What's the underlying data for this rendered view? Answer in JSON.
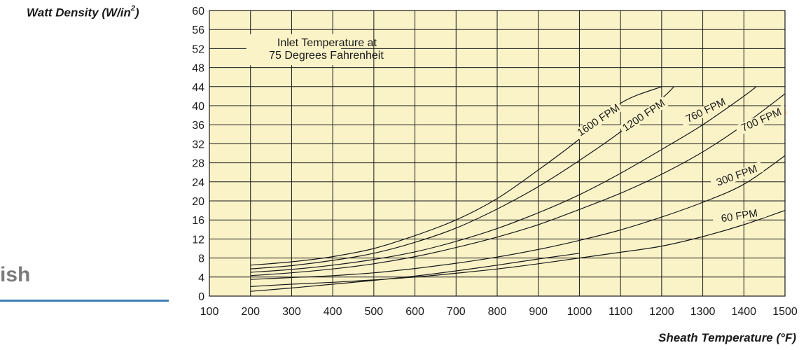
{
  "page": {
    "ylabel_main": "Watt Density (W/in",
    "ylabel_sup": "2",
    "ylabel_close": ")",
    "side_text": "ish"
  },
  "chart_data": {
    "type": "line",
    "title": "",
    "xlabel": "Sheath Temperature (°F)",
    "ylabel": "Watt Density (W/in2)",
    "xlim": [
      100,
      1500
    ],
    "ylim": [
      0,
      60
    ],
    "xticks": [
      100,
      200,
      300,
      400,
      500,
      600,
      700,
      800,
      900,
      1000,
      1100,
      1200,
      1300,
      1400,
      1500
    ],
    "yticks": [
      0,
      4,
      8,
      12,
      16,
      20,
      24,
      28,
      32,
      36,
      40,
      44,
      48,
      52,
      56,
      60
    ],
    "grid": true,
    "background": "#faf3c8",
    "annotation": [
      "Inlet Temperature at",
      "75 Degrees Fahrenheit"
    ],
    "series": [
      {
        "name": "1600 FPM",
        "x": [
          200,
          300,
          400,
          500,
          600,
          700,
          800,
          900,
          1000,
          1100,
          1200
        ],
        "y": [
          6.5,
          7.2,
          8.3,
          10.0,
          12.7,
          16.0,
          20.5,
          26.5,
          33.0,
          40.5,
          44.0
        ]
      },
      {
        "name": "1200 FPM",
        "x": [
          200,
          300,
          400,
          500,
          600,
          700,
          800,
          900,
          1000,
          1100,
          1200,
          1230
        ],
        "y": [
          5.7,
          6.4,
          7.5,
          9.0,
          11.3,
          14.3,
          18.3,
          23.0,
          28.5,
          34.5,
          41.5,
          44.0
        ]
      },
      {
        "name": "760 FPM",
        "x": [
          200,
          300,
          400,
          500,
          600,
          700,
          800,
          900,
          1000,
          1100,
          1200,
          1300,
          1400,
          1430
        ],
        "y": [
          5.0,
          5.6,
          6.5,
          7.7,
          9.3,
          11.5,
          14.2,
          17.5,
          21.3,
          25.8,
          30.8,
          36.0,
          42.0,
          44.0
        ]
      },
      {
        "name": "700 FPM",
        "x": [
          200,
          300,
          400,
          500,
          600,
          700,
          800,
          900,
          1000,
          1100,
          1200,
          1300,
          1400,
          1500
        ],
        "y": [
          4.3,
          4.9,
          5.7,
          6.8,
          8.3,
          10.2,
          12.4,
          15.0,
          18.2,
          21.6,
          25.6,
          30.3,
          36.0,
          42.5
        ]
      },
      {
        "name": "300 FPM",
        "x": [
          200,
          300,
          400,
          500,
          600,
          700,
          800,
          900,
          1000,
          1100,
          1200,
          1300,
          1400,
          1500
        ],
        "y": [
          3.5,
          3.9,
          4.3,
          4.9,
          5.8,
          6.9,
          8.2,
          9.8,
          11.7,
          13.9,
          16.6,
          19.7,
          23.5,
          29.5
        ]
      },
      {
        "name": "60 FPM",
        "x": [
          200,
          300,
          400,
          500,
          600,
          700,
          800,
          900,
          1000,
          1100,
          1200,
          1300,
          1400,
          1500
        ],
        "y": [
          2.0,
          2.5,
          2.9,
          3.4,
          4.0,
          4.8,
          5.7,
          6.8,
          8.0,
          9.2,
          10.5,
          12.5,
          15.0,
          18.0
        ]
      },
      {
        "name": "",
        "x": [
          200,
          300,
          400,
          500,
          600,
          700,
          800,
          900,
          1000
        ],
        "y": [
          1.0,
          1.7,
          2.5,
          3.3,
          4.2,
          5.3,
          6.5,
          7.8,
          9.0
        ]
      }
    ],
    "series_label_angle": [
      -34,
      -34,
      -26,
      -24,
      -20,
      -9,
      0
    ]
  }
}
